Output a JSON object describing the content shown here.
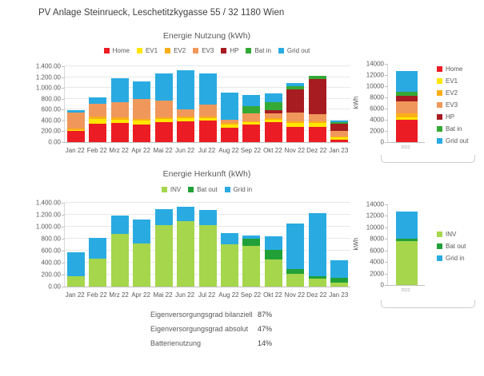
{
  "title": "PV Anlage Steinrueck, Leschetitzkygasse 55 / 32 1180 Wien",
  "colors": {
    "home": "#EC1C24",
    "ev1": "#FFE600",
    "ev2": "#FBAE17",
    "ev3": "#F0985B",
    "hp": "#A61C20",
    "bat_in": "#35A936",
    "grid_out": "#29ABE2",
    "inv": "#A5D64C",
    "bat_out": "#21A038",
    "grid_in": "#29ABE2",
    "text": "#595959",
    "gridline": "#E8E8E8"
  },
  "stats": {
    "rows": [
      {
        "label": "Eigenversorgungsgrad bilanziell",
        "value": "87%"
      },
      {
        "label": "Eigenversorgungsgrad absolut",
        "value": "47%"
      },
      {
        "label": "Batterienutzung",
        "value": "14%"
      }
    ]
  },
  "chart_data": [
    {
      "id": "nutzung",
      "type": "bar",
      "stacked": true,
      "title": "Energie Nutzung (kWh)",
      "ylabel": "",
      "legend_position": "top",
      "grid": true,
      "ylim": [
        0,
        1400
      ],
      "ytick_labels": [
        "0.00",
        "200.00",
        "400.00",
        "600.00",
        "800.00",
        "1.000.00",
        "1.200.00",
        "1.400.00"
      ],
      "categories": [
        "Jan 22",
        "Feb 22",
        "Mrz 22",
        "Apr 22",
        "Mai 22",
        "Jun 22",
        "Jul 22",
        "Aug 22",
        "Sep 22",
        "Okt 22",
        "Nov 22",
        "Dez 22",
        "Jan 23"
      ],
      "series": [
        {
          "name": "Home",
          "color": "#EC1C24",
          "values": [
            200,
            340,
            355,
            330,
            375,
            390,
            400,
            270,
            330,
            375,
            285,
            280,
            50
          ]
        },
        {
          "name": "EV1",
          "color": "#FFE600",
          "values": [
            25,
            90,
            65,
            75,
            55,
            50,
            40,
            60,
            40,
            45,
            70,
            75,
            35
          ]
        },
        {
          "name": "EV2",
          "color": "#FBAE17",
          "values": [
            20,
            35,
            35,
            30,
            25,
            30,
            25,
            25,
            15,
            25,
            35,
            35,
            20
          ]
        },
        {
          "name": "EV3",
          "color": "#F0985B",
          "values": [
            305,
            245,
            280,
            365,
            305,
            130,
            230,
            55,
            150,
            85,
            155,
            130,
            95
          ]
        },
        {
          "name": "HP",
          "color": "#A61C20",
          "values": [
            0,
            0,
            0,
            0,
            0,
            0,
            0,
            0,
            0,
            60,
            425,
            640,
            140
          ]
        },
        {
          "name": "Bat in",
          "color": "#35A936",
          "values": [
            0,
            0,
            0,
            0,
            0,
            0,
            0,
            0,
            135,
            150,
            55,
            65,
            25
          ]
        },
        {
          "name": "Grid out",
          "color": "#29ABE2",
          "values": [
            40,
            110,
            450,
            315,
            505,
            730,
            570,
            505,
            200,
            155,
            65,
            0,
            35
          ]
        }
      ]
    },
    {
      "id": "nutzung-year",
      "type": "bar",
      "stacked": true,
      "title": "",
      "ylabel": "kWh",
      "legend_position": "right",
      "grid": false,
      "ylim": [
        0,
        14000
      ],
      "ytick_labels": [
        "0",
        "2000",
        "4000",
        "6000",
        "8000",
        "10000",
        "12000",
        "14000"
      ],
      "categories": [
        "2022"
      ],
      "series": [
        {
          "name": "Home",
          "color": "#EC1C24",
          "values": [
            4000
          ]
        },
        {
          "name": "EV1",
          "color": "#FFE600",
          "values": [
            500
          ]
        },
        {
          "name": "EV2",
          "color": "#FBAE17",
          "values": [
            650
          ]
        },
        {
          "name": "EV3",
          "color": "#F0985B",
          "values": [
            2150
          ]
        },
        {
          "name": "HP",
          "color": "#A61C20",
          "values": [
            1050
          ]
        },
        {
          "name": "Bat in",
          "color": "#35A936",
          "values": [
            600
          ]
        },
        {
          "name": "Grid out",
          "color": "#29ABE2",
          "values": [
            3750
          ]
        }
      ]
    },
    {
      "id": "herkunft",
      "type": "bar",
      "stacked": true,
      "title": "Energie Herkunft (kWh)",
      "ylabel": "",
      "legend_position": "top",
      "grid": true,
      "ylim": [
        0,
        1400
      ],
      "ytick_labels": [
        "0.00",
        "200.00",
        "400.00",
        "600.00",
        "800.00",
        "1.000.00",
        "1.200.00",
        "1.400.00"
      ],
      "categories": [
        "Jan 22",
        "Feb 22",
        "Mrz 22",
        "Apr 22",
        "Mai 22",
        "Jun 22",
        "Jul 22",
        "Aug 22",
        "Sep 22",
        "Okt 22",
        "Nov 22",
        "Dez 22",
        "Jan 23"
      ],
      "series": [
        {
          "name": "INV",
          "color": "#A5D64C",
          "values": [
            175,
            470,
            880,
            720,
            1030,
            1100,
            1030,
            710,
            680,
            455,
            215,
            130,
            65
          ]
        },
        {
          "name": "Bat out",
          "color": "#21A038",
          "values": [
            0,
            0,
            0,
            0,
            0,
            0,
            0,
            0,
            120,
            165,
            75,
            50,
            85
          ]
        },
        {
          "name": "Grid in",
          "color": "#29ABE2",
          "values": [
            400,
            350,
            310,
            395,
            260,
            240,
            250,
            185,
            50,
            215,
            770,
            1050,
            290
          ]
        }
      ]
    },
    {
      "id": "herkunft-year",
      "type": "bar",
      "stacked": true,
      "title": "",
      "ylabel": "kWh",
      "legend_position": "right",
      "grid": false,
      "ylim": [
        0,
        14000
      ],
      "ytick_labels": [
        "0",
        "2000",
        "4000",
        "6000",
        "8000",
        "10000",
        "12000",
        "14000"
      ],
      "categories": [
        "2022"
      ],
      "series": [
        {
          "name": "INV",
          "color": "#A5D64C",
          "values": [
            7600
          ]
        },
        {
          "name": "Bat out",
          "color": "#21A038",
          "values": [
            500
          ]
        },
        {
          "name": "Grid in",
          "color": "#29ABE2",
          "values": [
            4700
          ]
        }
      ]
    }
  ]
}
